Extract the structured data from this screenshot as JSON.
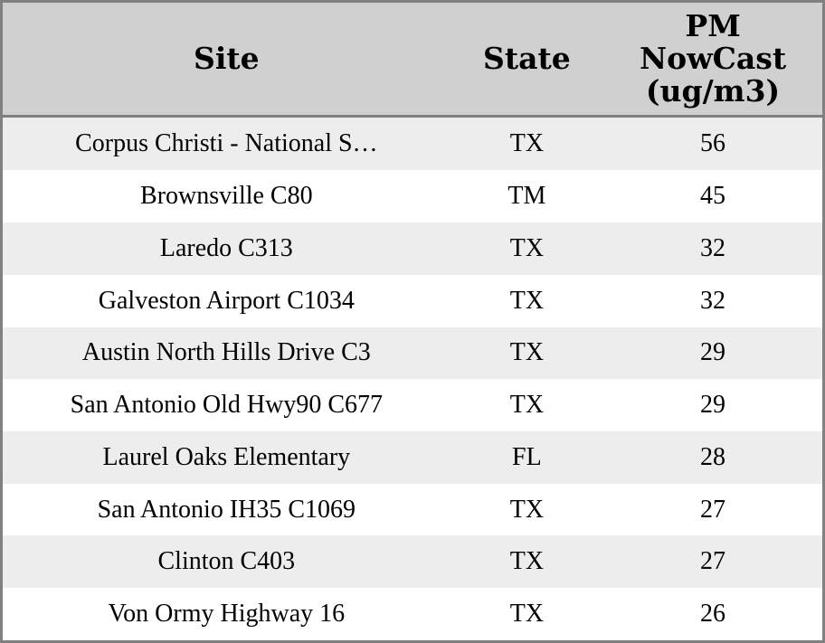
{
  "colors": {
    "border": "#808080",
    "header_bg": "#d0d0d0",
    "stripe_bg": "#ededed",
    "row_bg": "#ffffff",
    "text": "#000000"
  },
  "table": {
    "headers": [
      {
        "key": "site",
        "label": "Site"
      },
      {
        "key": "state",
        "label": "State"
      },
      {
        "key": "pm",
        "label": "PM NowCast (ug/m3)"
      }
    ],
    "rows": [
      {
        "site": "Corpus Christi - National S…",
        "state": "TX",
        "pm": 56
      },
      {
        "site": "Brownsville C80",
        "state": "TM",
        "pm": 45
      },
      {
        "site": "Laredo C313",
        "state": "TX",
        "pm": 32
      },
      {
        "site": "Galveston Airport C1034",
        "state": "TX",
        "pm": 32
      },
      {
        "site": "Austin North Hills Drive C3",
        "state": "TX",
        "pm": 29
      },
      {
        "site": "San Antonio Old Hwy90 C677",
        "state": "TX",
        "pm": 29
      },
      {
        "site": "Laurel Oaks Elementary",
        "state": "FL",
        "pm": 28
      },
      {
        "site": "San Antonio IH35 C1069",
        "state": "TX",
        "pm": 27
      },
      {
        "site": "Clinton C403",
        "state": "TX",
        "pm": 27
      },
      {
        "site": "Von Ormy Highway 16",
        "state": "TX",
        "pm": 26
      }
    ]
  }
}
